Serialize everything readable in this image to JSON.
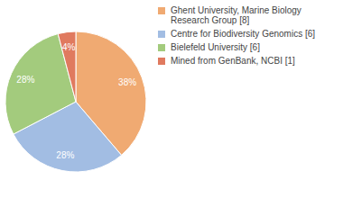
{
  "chart_data": {
    "type": "pie",
    "categories": [
      "Ghent University, Marine Biology Research Group [8]",
      "Centre for Biodiversity Genomics [6]",
      "Bielefeld University [6]",
      "Mined from GenBank, NCBI [1]"
    ],
    "values": [
      38,
      28,
      28,
      4
    ],
    "value_labels": [
      "38%",
      "28%",
      "28%",
      "4%"
    ],
    "data_labels": true,
    "colors": [
      "#f0aa72",
      "#a2bde3",
      "#a3cb7d",
      "#e07a5f"
    ]
  }
}
